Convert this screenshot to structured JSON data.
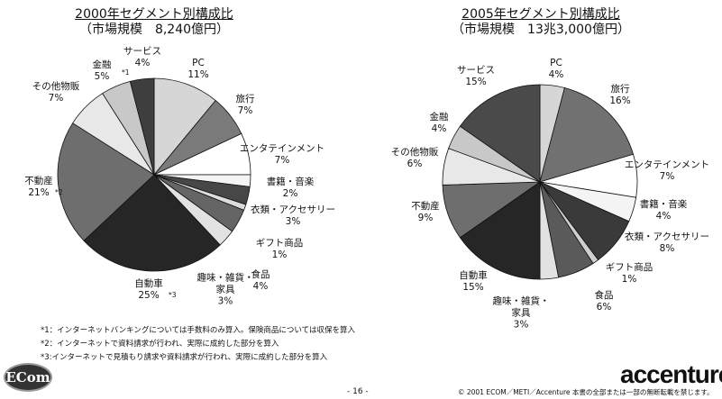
{
  "chart_data": [
    {
      "type": "pie",
      "title": "2000年セグメント別構成比",
      "subtitle": "（市場規模　8,240億円）",
      "categories": [
        "PC",
        "旅行",
        "エンタテインメント",
        "書籍・音楽",
        "衣類・アクセサリー",
        "ギフト商品",
        "食品",
        "趣味・雑貨・家具",
        "自動車",
        "不動産",
        "その他物販",
        "金融",
        "サービス"
      ],
      "values": [
        11,
        7,
        7,
        2,
        3,
        1,
        4,
        3,
        25,
        21,
        7,
        5,
        4
      ],
      "colors": [
        "#d6d6d6",
        "#7a7a7a",
        "#ffffff",
        "#f4f4f4",
        "#474747",
        "#dcdcdc",
        "#656565",
        "#e2e2e2",
        "#262626",
        "#6e6e6e",
        "#e8e8e8",
        "#c8c8c8",
        "#3e3e3e"
      ],
      "notes": {
        "金融": "*1",
        "不動産": "*2",
        "自動車": "*3"
      }
    },
    {
      "type": "pie",
      "title": "2005年セグメント別構成比",
      "subtitle": "（市場規模　13兆3,000億円）",
      "categories": [
        "PC",
        "旅行",
        "エンタテインメント",
        "書籍・音楽",
        "衣類・アクセサリー",
        "ギフト商品",
        "食品",
        "趣味・雑貨・家具",
        "自動車",
        "不動産",
        "その他物販",
        "金融",
        "サービス"
      ],
      "values": [
        4,
        16,
        7,
        4,
        8,
        1,
        6,
        3,
        15,
        9,
        6,
        4,
        15
      ],
      "colors": [
        "#d6d6d6",
        "#717171",
        "#ffffff",
        "#f4f4f4",
        "#3a3a3a",
        "#cfcfcf",
        "#5a5a5a",
        "#e2e2e2",
        "#262626",
        "#6e6e6e",
        "#e8e8e8",
        "#c8c8c8",
        "#4a4a4a"
      ],
      "notes": {}
    }
  ],
  "footnotes": [
    "*1：インターネットバンキングについては手数料のみ算入。保険商品については収保を算入",
    "*2：インターネットで資料請求が行われ、実際に成約した部分を算入",
    "*3:インターネットで見積もり請求や資料請求が行われ、実際に成約した部分を算入"
  ],
  "footer": {
    "logo_left": "ECom",
    "page_number": "- 16 -",
    "logo_right": "accenture",
    "copyright": "© 2001 ECOM／METI／Accenture 本書の全部または一部の無断転載を禁じます。"
  }
}
